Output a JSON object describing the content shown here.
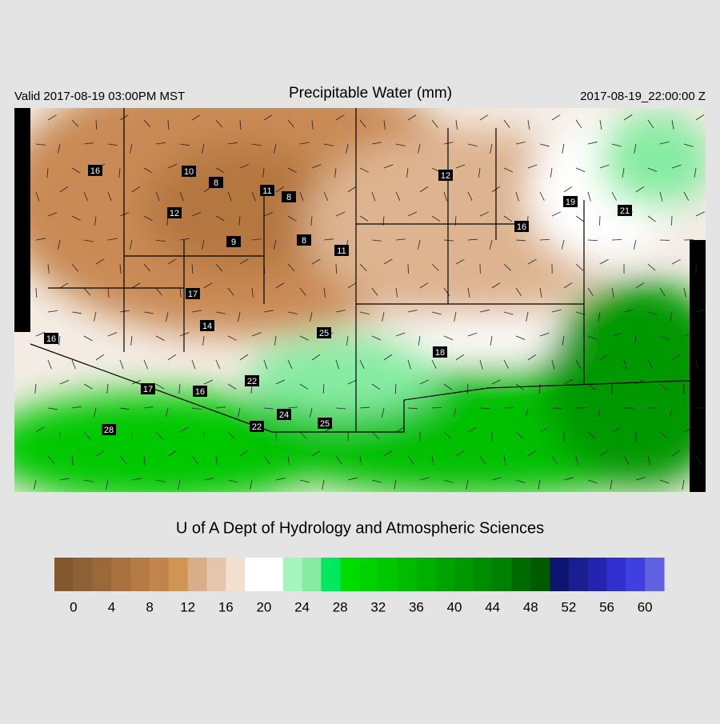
{
  "header": {
    "valid": "Valid 2017-08-19 03:00PM MST",
    "title": "Precipitable Water (mm)",
    "time": "2017-08-19_22:00:00 Z"
  },
  "map": {
    "station_labels": [
      16,
      10,
      8,
      11,
      8,
      12,
      9,
      8,
      11,
      17,
      14,
      16,
      12,
      16,
      19,
      21,
      25,
      18,
      22,
      17,
      16,
      24,
      25,
      22,
      28
    ]
  },
  "credit": "U of A Dept of Hydrology and Atmospheric Sciences",
  "colorbar": {
    "range": [
      -2,
      62
    ],
    "colors": [
      "#85592f",
      "#8f6136",
      "#9b683a",
      "#a8713f",
      "#b67a45",
      "#c3844b",
      "#d09553",
      "#d8ad88",
      "#e5c6ad",
      "#f1dfd0",
      "#ffffff",
      "#ffffff",
      "#a6f4c0",
      "#86eca2",
      "#00e860",
      "#00dc00",
      "#00d200",
      "#00c800",
      "#00bc00",
      "#00b000",
      "#00a400",
      "#009800",
      "#008c00",
      "#008000",
      "#006a00",
      "#005a00",
      "#0c1670",
      "#1a1e90",
      "#2424b0",
      "#3030d0",
      "#4040e0",
      "#6060e0"
    ],
    "ticks": [
      0,
      4,
      8,
      12,
      16,
      20,
      24,
      28,
      32,
      36,
      40,
      44,
      48,
      52,
      56,
      60
    ]
  }
}
